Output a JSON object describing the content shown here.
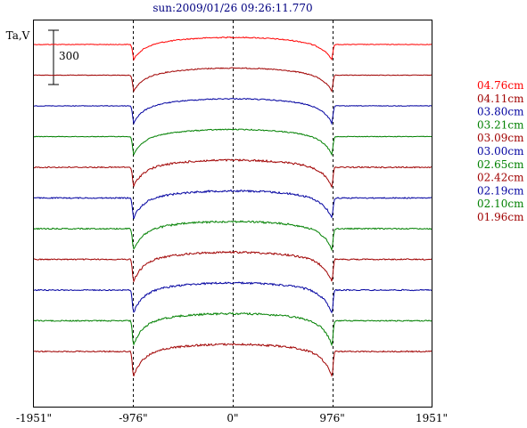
{
  "chart_data": {
    "type": "line",
    "title": "sun:2009/01/26 09:26:11.770",
    "ylabel": "Ta,V",
    "scale_bar_label": "300",
    "x_ticks": [
      "-1951\"",
      "-976\"",
      "0\"",
      "976\"",
      "1951\""
    ],
    "x_tick_values": [
      -1951,
      -976,
      0,
      976,
      1951
    ],
    "xlim": [
      -1951,
      1951
    ],
    "limb_marks": [
      -976,
      0,
      976
    ],
    "series": [
      {
        "name": "04.76cm",
        "color": "#ff0000"
      },
      {
        "name": "04.11cm",
        "color": "#a00000"
      },
      {
        "name": "03.80cm",
        "color": "#0000a0"
      },
      {
        "name": "03.21cm",
        "color": "#008000"
      },
      {
        "name": "03.09cm",
        "color": "#a00000"
      },
      {
        "name": "03.00cm",
        "color": "#0000a0"
      },
      {
        "name": "02.65cm",
        "color": "#008000"
      },
      {
        "name": "02.42cm",
        "color": "#a00000"
      },
      {
        "name": "02.19cm",
        "color": "#0000a0"
      },
      {
        "name": "02.10cm",
        "color": "#008000"
      },
      {
        "name": "01.96cm",
        "color": "#a00000"
      }
    ]
  }
}
